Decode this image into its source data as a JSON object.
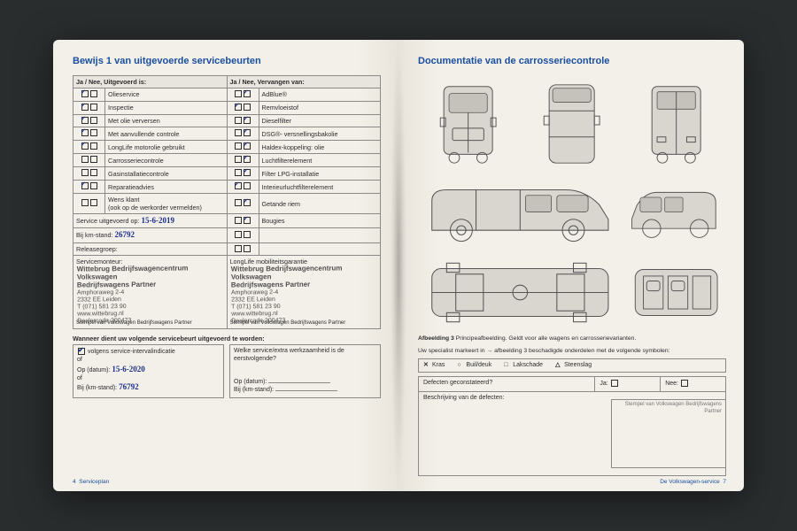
{
  "left": {
    "title": "Bewijs 1 van uitgevoerde servicebeurten",
    "head_a": "Ja / Nee, Uitgevoerd is:",
    "head_b": "Ja / Nee, Vervangen van:",
    "rows": [
      {
        "a_chk": [
          true,
          false
        ],
        "a": "Olieservice",
        "b_chk": [
          false,
          true
        ],
        "b": "AdBlue®"
      },
      {
        "a_chk": [
          true,
          false
        ],
        "a": "Inspectie",
        "b_chk": [
          true,
          false
        ],
        "b": "Remvloeistof"
      },
      {
        "a_chk": [
          true,
          false
        ],
        "a": "Met olie verversen",
        "b_chk": [
          false,
          true
        ],
        "b": "Dieselfilter"
      },
      {
        "a_chk": [
          true,
          false
        ],
        "a": "Met aanvullende controle",
        "b_chk": [
          false,
          true
        ],
        "b": "DSG®- versnellingsbakolie"
      },
      {
        "a_chk": [
          true,
          false
        ],
        "a": "LongLife motorolie gebruikt",
        "b_chk": [
          false,
          true
        ],
        "b": "Haldex-koppeling: olie"
      },
      {
        "a_chk": [
          false,
          false
        ],
        "a": "Carrosseriecontrole",
        "b_chk": [
          false,
          true
        ],
        "b": "Luchtfilterelement"
      },
      {
        "a_chk": [
          false,
          false
        ],
        "a": "Gasinstallatiecontrole",
        "b_chk": [
          false,
          true
        ],
        "b": "Filter LPG-installatie"
      },
      {
        "a_chk": [
          true,
          false
        ],
        "a": "Reparatieadvies",
        "b_chk": [
          true,
          false
        ],
        "b": "Interieurluchtfilterelement"
      },
      {
        "a_chk": [
          false,
          false
        ],
        "a": "Wens klant\n(ook op de werkorder vermelden)",
        "b_chk": [
          false,
          true
        ],
        "b": "Getande riem"
      }
    ],
    "service_date_label": "Service uitgevoerd op:",
    "service_date": "15-6-2019",
    "km_label": "Bij km-stand:",
    "km": "26792",
    "relase_label": "Releasegroep:",
    "bougies": "Bougies",
    "stamp_cell_a": "Servicemonteur:",
    "stamp_cell_b": "LongLife mobiliteitsgarantie",
    "stamp_name": "Wittebrug Bedrijfswagencentrum",
    "stamp_brand": "Volkswagen",
    "stamp_partner": "Bedrijfswagens Partner",
    "stamp_addr1": "Amphoraweg 2-4",
    "stamp_addr2": "2332 EE Leiden",
    "stamp_tel": "T (071) 581 23 90",
    "stamp_web": "www.wittebrug.nl",
    "stamp_dealer": "Dealercode 200473",
    "stamp_foot": "Stempel van Volkswagen Bedrijfswagens Partner",
    "next_head": "Wanneer dient uw volgende servicebeurt uitgevoerd te worden:",
    "next_opt1": "volgens service-intervalindicatie",
    "next_opt2": "of",
    "next_date_label": "Op (datum):",
    "next_date": "15-6-2020",
    "next_km_label": "Bij (km-stand):",
    "next_km": "76792",
    "next_extra_head": "Welke service/extra werkzaamheid is de eerstvolgende?",
    "next_on_date": "Op (datum):",
    "next_on_km": "Bij (km-stand):",
    "footer_l": "Serviceplan",
    "page_l": "4"
  },
  "right": {
    "title": "Documentatie van de carrosseriecontrole",
    "caption_b": "Afbeelding 3",
    "caption": "  Principeafbeelding. Geldt voor alle wagens en carrosserievarianten.",
    "legend_intro": "Uw specialist markeert in → afbeelding 3 beschadigde onderdelen met de volgende symbolen:",
    "legend": [
      {
        "sym": "✕",
        "label": "Kras"
      },
      {
        "sym": "○",
        "label": "Buil/deuk"
      },
      {
        "sym": "□",
        "label": "Lakschade"
      },
      {
        "sym": "△",
        "label": "Steenslag"
      }
    ],
    "defect_q": "Defecten geconstateerd?",
    "ja": "Ja:",
    "nee": "Nee:",
    "desc": "Beschrijving van de defecten:",
    "stampbox": "Stempel van Volkswagen Bedrijfswagens Partner",
    "footer_r": "De Volkswagen-service",
    "page_r": "7"
  },
  "colors": {
    "blue": "#1a4fa0",
    "pen": "#1b2f8a",
    "paper": "#f3f0e9",
    "line": "#8a8a88",
    "bg": "#2a2d2e"
  }
}
